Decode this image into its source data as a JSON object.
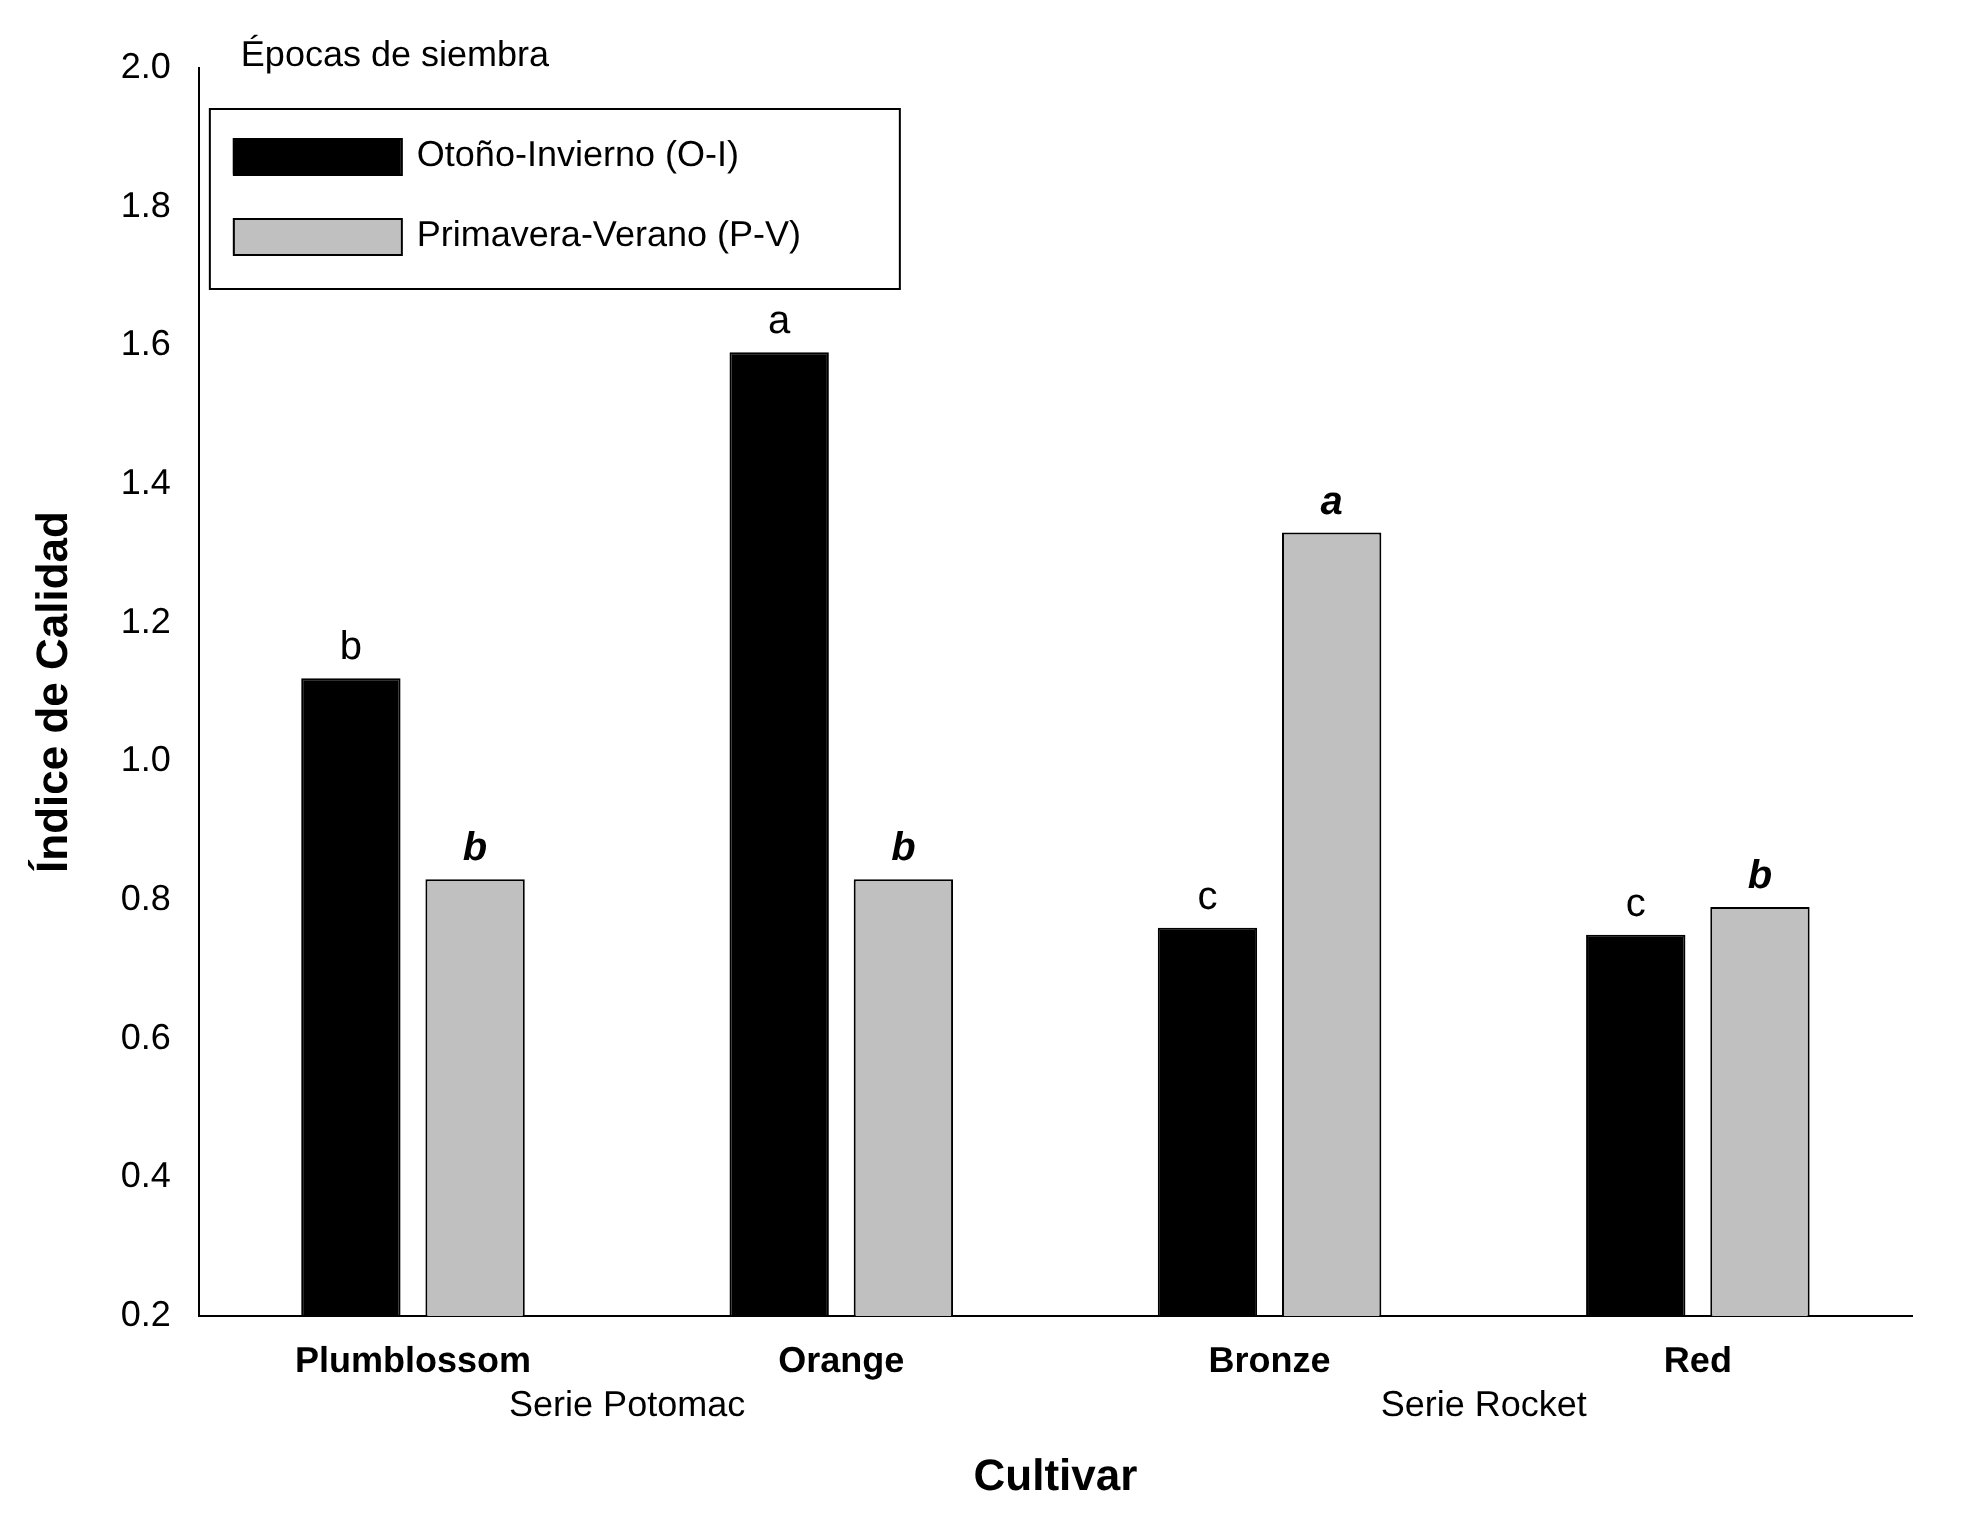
{
  "chart_data": {
    "type": "bar",
    "xlabel": "Cultivar",
    "ylabel": "Índice de Calidad",
    "legend_title": "Épocas de siembra",
    "legend": "top left",
    "categories": [
      "Plumblossom",
      "Orange",
      "Bronze",
      "Red"
    ],
    "series": [
      {
        "name": "Otoño-Invierno (O-I)",
        "color": "#000000",
        "values": [
          1.12,
          1.59,
          0.76,
          0.75
        ],
        "value_labels": [
          "b",
          "a",
          "c",
          "c"
        ]
      },
      {
        "name": "Primavera-Verano (P-V)",
        "color": "#c0c0c0",
        "values": [
          0.83,
          0.83,
          1.33,
          0.79
        ],
        "value_labels": [
          "b",
          "b",
          "a",
          "b"
        ]
      }
    ],
    "ylim": [
      0.2,
      2.0
    ],
    "yticks": [
      0.2,
      0.4,
      0.6,
      0.8,
      {
        "value": 1,
        "label": "1.0"
      },
      1.2,
      1.4,
      1.6,
      1.8,
      {
        "value": 2,
        "label": "2.0"
      }
    ],
    "grid": false,
    "annotations": [
      "Serie Potomac",
      "Serie Rocket"
    ]
  }
}
